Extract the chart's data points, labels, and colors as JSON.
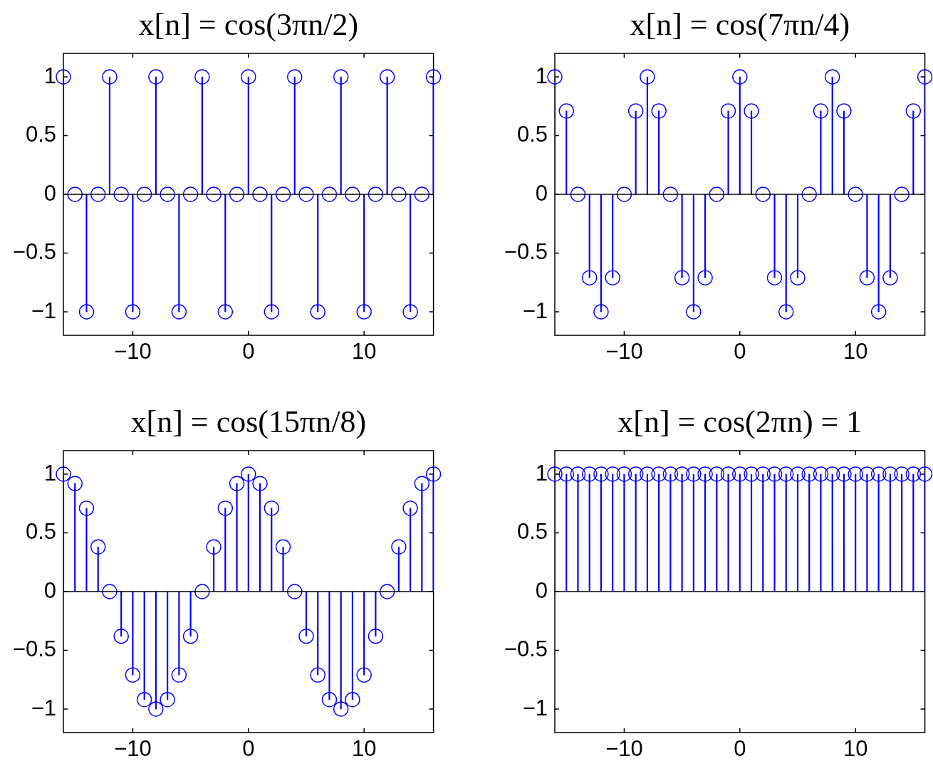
{
  "chart_data": [
    {
      "type": "lollipop",
      "title": "x[n] = cos(3πn/2)",
      "x": [
        -16,
        -15,
        -14,
        -13,
        -12,
        -11,
        -10,
        -9,
        -8,
        -7,
        -6,
        -5,
        -4,
        -3,
        -2,
        -1,
        0,
        1,
        2,
        3,
        4,
        5,
        6,
        7,
        8,
        9,
        10,
        11,
        12,
        13,
        14,
        15,
        16
      ],
      "series": [
        {
          "color": "#0000ff",
          "values": [
            1,
            0,
            -1,
            0,
            1,
            0,
            -1,
            0,
            1,
            0,
            -1,
            0,
            1,
            0,
            -1,
            0,
            1,
            0,
            -1,
            0,
            1,
            0,
            -1,
            0,
            1,
            0,
            -1,
            0,
            1,
            0,
            -1,
            0,
            1
          ]
        }
      ],
      "marker": "circle",
      "xlim": [
        -16,
        16
      ],
      "xticks": [
        -10,
        0,
        10
      ],
      "ylim": [
        -1.2,
        1.2
      ],
      "yticks": [
        -1,
        -0.5,
        0,
        0.5,
        1
      ],
      "ref_lines": [
        {
          "axis": "y",
          "value": 0,
          "color": "#000000"
        }
      ]
    },
    {
      "type": "lollipop",
      "title": "x[n] = cos(7πn/4)",
      "x": [
        -16,
        -15,
        -14,
        -13,
        -12,
        -11,
        -10,
        -9,
        -8,
        -7,
        -6,
        -5,
        -4,
        -3,
        -2,
        -1,
        0,
        1,
        2,
        3,
        4,
        5,
        6,
        7,
        8,
        9,
        10,
        11,
        12,
        13,
        14,
        15,
        16
      ],
      "series": [
        {
          "color": "#0000ff",
          "values": [
            1,
            0.71,
            0,
            -0.71,
            -1,
            -0.71,
            0,
            0.71,
            1,
            0.71,
            0,
            -0.71,
            -1,
            -0.71,
            0,
            0.71,
            1,
            0.71,
            0,
            -0.71,
            -1,
            -0.71,
            0,
            0.71,
            1,
            0.71,
            0,
            -0.71,
            -1,
            -0.71,
            0,
            0.71,
            1
          ]
        }
      ],
      "marker": "circle",
      "xlim": [
        -16,
        16
      ],
      "xticks": [
        -10,
        0,
        10
      ],
      "ylim": [
        -1.2,
        1.2
      ],
      "yticks": [
        -1,
        -0.5,
        0,
        0.5,
        1
      ],
      "ref_lines": [
        {
          "axis": "y",
          "value": 0,
          "color": "#000000"
        }
      ]
    },
    {
      "type": "lollipop",
      "title": "x[n] = cos(15πn/8)",
      "x": [
        -16,
        -15,
        -14,
        -13,
        -12,
        -11,
        -10,
        -9,
        -8,
        -7,
        -6,
        -5,
        -4,
        -3,
        -2,
        -1,
        0,
        1,
        2,
        3,
        4,
        5,
        6,
        7,
        8,
        9,
        10,
        11,
        12,
        13,
        14,
        15,
        16
      ],
      "series": [
        {
          "color": "#0000ff",
          "values": [
            1,
            0.92,
            0.71,
            0.38,
            0,
            -0.38,
            -0.71,
            -0.92,
            -1,
            -0.92,
            -0.71,
            -0.38,
            0,
            0.38,
            0.71,
            0.92,
            1,
            0.92,
            0.71,
            0.38,
            0,
            -0.38,
            -0.71,
            -0.92,
            -1,
            -0.92,
            -0.71,
            -0.38,
            0,
            0.38,
            0.71,
            0.92,
            1
          ]
        }
      ],
      "marker": "circle",
      "xlim": [
        -16,
        16
      ],
      "xticks": [
        -10,
        0,
        10
      ],
      "ylim": [
        -1.2,
        1.2
      ],
      "yticks": [
        -1,
        -0.5,
        0,
        0.5,
        1
      ],
      "ref_lines": [
        {
          "axis": "y",
          "value": 0,
          "color": "#000000"
        }
      ]
    },
    {
      "type": "lollipop",
      "title": "x[n] = cos(2πn) = 1",
      "x": [
        -16,
        -15,
        -14,
        -13,
        -12,
        -11,
        -10,
        -9,
        -8,
        -7,
        -6,
        -5,
        -4,
        -3,
        -2,
        -1,
        0,
        1,
        2,
        3,
        4,
        5,
        6,
        7,
        8,
        9,
        10,
        11,
        12,
        13,
        14,
        15,
        16
      ],
      "series": [
        {
          "color": "#0000ff",
          "values": [
            1,
            1,
            1,
            1,
            1,
            1,
            1,
            1,
            1,
            1,
            1,
            1,
            1,
            1,
            1,
            1,
            1,
            1,
            1,
            1,
            1,
            1,
            1,
            1,
            1,
            1,
            1,
            1,
            1,
            1,
            1,
            1,
            1
          ]
        }
      ],
      "marker": "circle",
      "xlim": [
        -16,
        16
      ],
      "xticks": [
        -10,
        0,
        10
      ],
      "ylim": [
        -1.2,
        1.2
      ],
      "yticks": [
        -1,
        -0.5,
        0,
        0.5,
        1
      ],
      "ref_lines": [
        {
          "axis": "y",
          "value": 0,
          "color": "#000000"
        }
      ]
    }
  ]
}
